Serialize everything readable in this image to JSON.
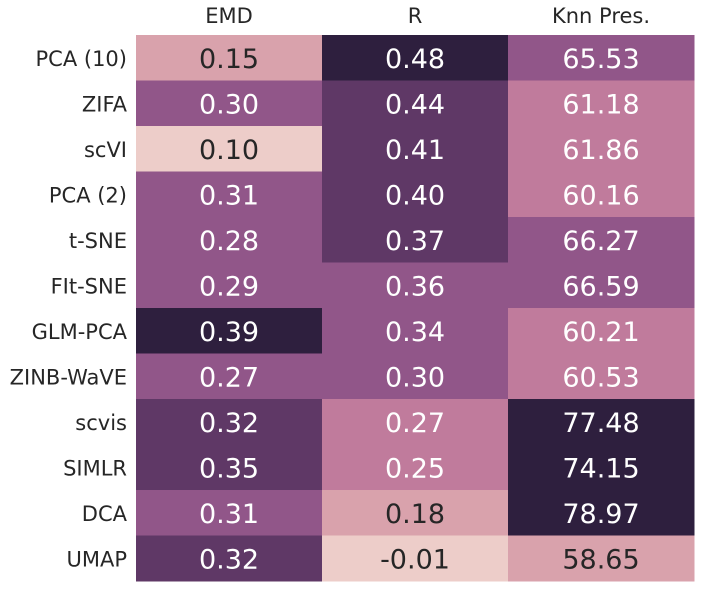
{
  "chart_data": {
    "type": "heatmap",
    "columns": [
      "EMD",
      "R",
      "Knn Pres."
    ],
    "rows": [
      "PCA (10)",
      "ZIFA",
      "scVI",
      "PCA (2)",
      "t-SNE",
      "FIt-SNE",
      "GLM-PCA",
      "ZINB-WaVE",
      "scvis",
      "SIMLR",
      "DCA",
      "UMAP"
    ],
    "values": [
      [
        0.15,
        0.48,
        65.53
      ],
      [
        0.3,
        0.44,
        61.18
      ],
      [
        0.1,
        0.41,
        61.86
      ],
      [
        0.31,
        0.4,
        60.16
      ],
      [
        0.28,
        0.37,
        66.27
      ],
      [
        0.29,
        0.36,
        66.59
      ],
      [
        0.39,
        0.34,
        60.21
      ],
      [
        0.27,
        0.3,
        60.53
      ],
      [
        0.32,
        0.27,
        77.48
      ],
      [
        0.35,
        0.25,
        74.15
      ],
      [
        0.31,
        0.18,
        78.97
      ],
      [
        0.32,
        -0.01,
        58.65
      ]
    ],
    "labels": [
      [
        "0.15",
        "0.48",
        "65.53"
      ],
      [
        "0.30",
        "0.44",
        "61.18"
      ],
      [
        "0.10",
        "0.41",
        "61.86"
      ],
      [
        "0.31",
        "0.40",
        "60.16"
      ],
      [
        "0.28",
        "0.37",
        "66.27"
      ],
      [
        "0.29",
        "0.36",
        "66.59"
      ],
      [
        "0.39",
        "0.34",
        "60.21"
      ],
      [
        "0.27",
        "0.30",
        "60.53"
      ],
      [
        "0.32",
        "0.27",
        "77.48"
      ],
      [
        "0.35",
        "0.25",
        "74.15"
      ],
      [
        "0.31",
        "0.18",
        "78.97"
      ],
      [
        "0.32",
        "-0.01",
        "58.65"
      ]
    ],
    "colors": [
      [
        "#d9a2ac",
        "#2e1f3e",
        "#915689"
      ],
      [
        "#915689",
        "#5f3866",
        "#c07b9c"
      ],
      [
        "#edcdc9",
        "#5f3866",
        "#c07b9c"
      ],
      [
        "#915689",
        "#5f3866",
        "#c07b9c"
      ],
      [
        "#915689",
        "#5f3866",
        "#915689"
      ],
      [
        "#915689",
        "#915689",
        "#915689"
      ],
      [
        "#2e1f3e",
        "#915689",
        "#c07b9c"
      ],
      [
        "#915689",
        "#915689",
        "#c07b9c"
      ],
      [
        "#5f3866",
        "#c07b9c",
        "#2e1f3e"
      ],
      [
        "#5f3866",
        "#c07b9c",
        "#2e1f3e"
      ],
      [
        "#915689",
        "#d9a2ac",
        "#2e1f3e"
      ],
      [
        "#5f3866",
        "#edcdc9",
        "#d9a2ac"
      ]
    ],
    "text_colors": [
      [
        "#262626",
        "#ffffff",
        "#ffffff"
      ],
      [
        "#ffffff",
        "#ffffff",
        "#ffffff"
      ],
      [
        "#262626",
        "#ffffff",
        "#ffffff"
      ],
      [
        "#ffffff",
        "#ffffff",
        "#ffffff"
      ],
      [
        "#ffffff",
        "#ffffff",
        "#ffffff"
      ],
      [
        "#ffffff",
        "#ffffff",
        "#ffffff"
      ],
      [
        "#ffffff",
        "#ffffff",
        "#ffffff"
      ],
      [
        "#ffffff",
        "#ffffff",
        "#ffffff"
      ],
      [
        "#ffffff",
        "#ffffff",
        "#ffffff"
      ],
      [
        "#ffffff",
        "#ffffff",
        "#ffffff"
      ],
      [
        "#ffffff",
        "#262626",
        "#ffffff"
      ],
      [
        "#ffffff",
        "#262626",
        "#262626"
      ]
    ],
    "column_labels_position": "top",
    "grid": false,
    "legend": false
  }
}
